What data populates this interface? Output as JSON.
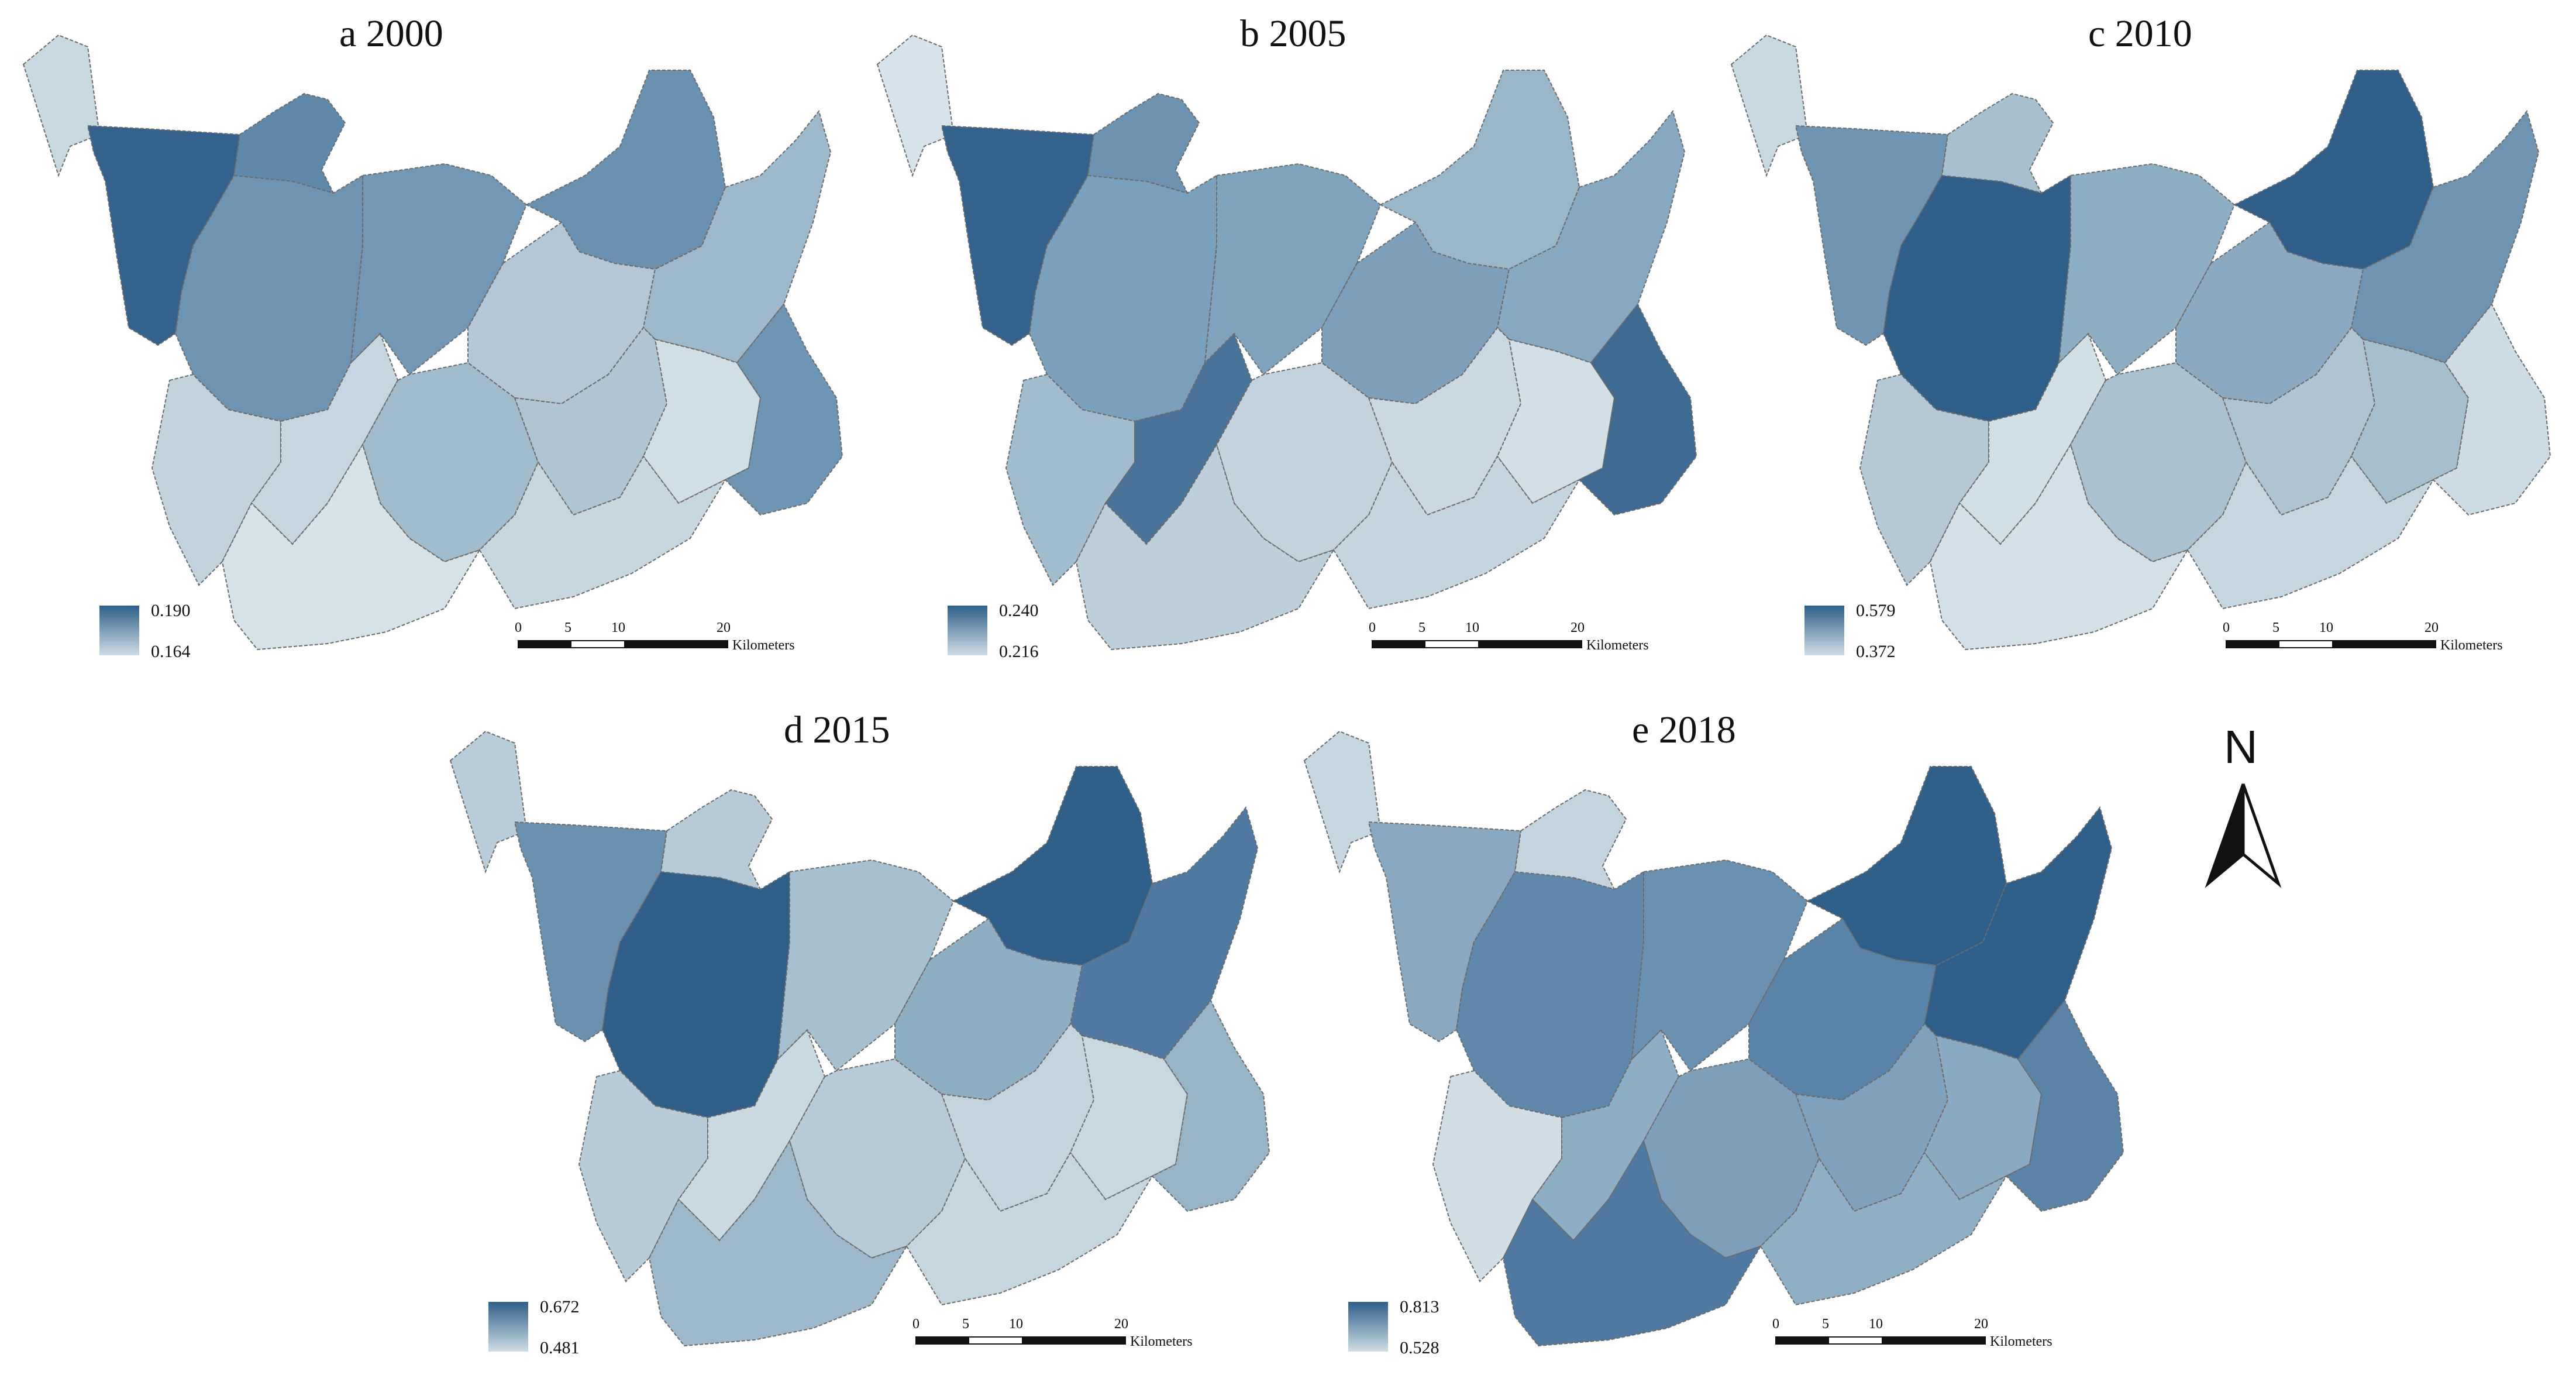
{
  "panels": [
    {
      "title": "a 2000",
      "legend_high": "0.190",
      "legend_low": "0.164",
      "fills": [
        "#c9d9e2",
        "#34628c",
        "#5f88a9",
        "#6f94b2",
        "#c2d3de",
        "#c6d6e0",
        "#7398b5",
        "#6a91b0",
        "#b3c7d6",
        "#9eb9cb",
        "#a1bccd",
        "#b0c5d4",
        "#d0dfe6",
        "#d5e2e8",
        "#6e95b3",
        "#c7d7e0"
      ]
    },
    {
      "title": "b 2005",
      "legend_high": "0.240",
      "legend_low": "0.216",
      "fills": [
        "#d6e3ea",
        "#34628c",
        "#6d93b1",
        "#7aa0bb",
        "#a1bccd",
        "#4a7399",
        "#7fa3bd",
        "#9ab6c9",
        "#7d9fb9",
        "#86a8c0",
        "#c2d3de",
        "#c9d8e1",
        "#d2dfe7",
        "#bdcfdb",
        "#3f6b93",
        "#c4d5df"
      ]
    },
    {
      "title": "c 2010",
      "legend_high": "0.579",
      "legend_low": "0.372",
      "fills": [
        "#c9d9e2",
        "#6f95b3",
        "#a7c0d0",
        "#2f5f88",
        "#b4c8d6",
        "#d1dfe6",
        "#8eaec4",
        "#2f5f88",
        "#8baac1",
        "#6f94b2",
        "#a9c1d1",
        "#aec4d3",
        "#a6bfcf",
        "#d3e0e7",
        "#cddbe4",
        "#c6d6e0"
      ]
    },
    {
      "title": "d 2015",
      "legend_high": "0.672",
      "legend_low": "0.481",
      "fills": [
        "#b9ccd9",
        "#6a91b0",
        "#b6cad7",
        "#2f5f88",
        "#b8cbd8",
        "#c9d9e2",
        "#a7c0d0",
        "#2f5f88",
        "#8eaec4",
        "#4f79a0",
        "#b7cad8",
        "#c3d4df",
        "#c8d8e1",
        "#9eb9cb",
        "#98b5c8",
        "#c5d6df"
      ]
    },
    {
      "title": "e 2018",
      "legend_high": "0.813",
      "legend_low": "0.528",
      "fills": [
        "#c7d7e1",
        "#8aa9c1",
        "#c3d4df",
        "#5f88aa",
        "#d0dde5",
        "#8eaec4",
        "#6a91b0",
        "#2f5f88",
        "#5a84a7",
        "#2f5f88",
        "#7d9fb9",
        "#7fa1bb",
        "#8aaac1",
        "#4f79a0",
        "#5a83a6",
        "#8fafc5"
      ]
    }
  ],
  "scale_bar": {
    "ticks": [
      "0",
      "5",
      "10",
      "20"
    ],
    "unit": "Kilometers"
  },
  "north_arrow": {
    "label": "N"
  },
  "colors": {
    "high": "#2f5f88",
    "low": "#d3e0e7",
    "border": "#6b6b6b"
  }
}
